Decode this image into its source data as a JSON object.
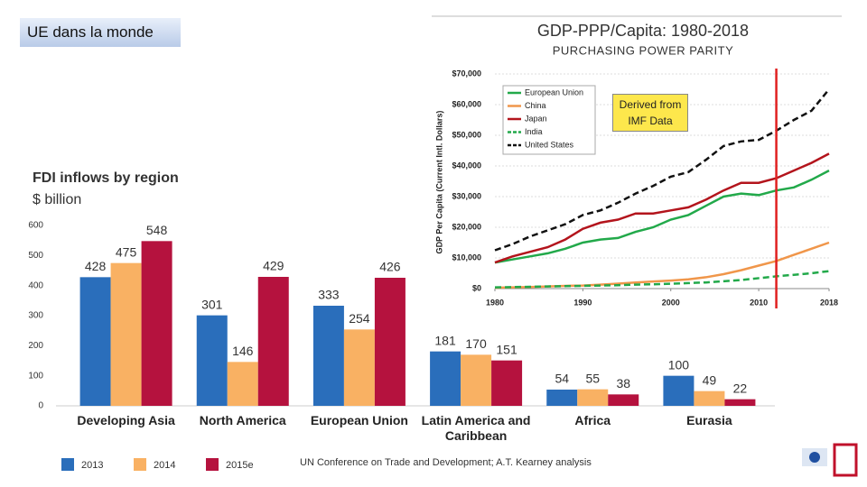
{
  "slide_title": "UE dans la monde",
  "chart_data": [
    {
      "type": "bar",
      "title": "FDI inflows by region",
      "subtitle": "$ billion",
      "categories": [
        "Developing Asia",
        "North America",
        "European Union",
        "Latin America and Caribbean",
        "Africa",
        "Eurasia"
      ],
      "series": [
        {
          "name": "2013",
          "color": "#2a6ebb",
          "values": [
            428,
            301,
            333,
            181,
            54,
            100
          ]
        },
        {
          "name": "2014",
          "color": "#f9b163",
          "values": [
            475,
            146,
            254,
            170,
            55,
            49
          ]
        },
        {
          "name": "2015e",
          "color": "#b5123e",
          "values": [
            548,
            429,
            426,
            151,
            38,
            22
          ]
        }
      ],
      "ylim": [
        0,
        600
      ],
      "yticks": [
        0,
        100,
        200,
        300,
        400,
        500,
        600
      ],
      "source": "UN Conference on Trade and Development; A.T. Kearney analysis"
    },
    {
      "type": "line",
      "title": "GDP-PPP/Capita: 1980-2018",
      "subtitle": "PURCHASING POWER PARITY",
      "y_label": "GDP Per Capita (Current Intl. Dollars)",
      "annotation": "Derived from IMF Data",
      "x": [
        1980,
        1982,
        1984,
        1986,
        1988,
        1990,
        1992,
        1994,
        1996,
        1998,
        2000,
        2002,
        2004,
        2006,
        2008,
        2010,
        2012,
        2014,
        2016,
        2018
      ],
      "series": [
        {
          "name": "European Union",
          "color": "#22a94a",
          "dash": false,
          "values": [
            8500,
            9500,
            10500,
            11500,
            13000,
            15000,
            16000,
            16500,
            18500,
            20000,
            22500,
            24000,
            27000,
            30000,
            31000,
            30500,
            32000,
            33000,
            35500,
            38500
          ]
        },
        {
          "name": "China",
          "color": "#f0964a",
          "dash": false,
          "values": [
            300,
            400,
            500,
            700,
            900,
            1000,
            1300,
            1600,
            2000,
            2300,
            2600,
            3000,
            3700,
            4700,
            6000,
            7500,
            9000,
            11000,
            13000,
            15000
          ]
        },
        {
          "name": "Japan",
          "color": "#b3141c",
          "dash": false,
          "values": [
            8500,
            10500,
            12000,
            13500,
            16000,
            19500,
            21500,
            22500,
            24500,
            24500,
            25500,
            26500,
            29000,
            32000,
            34500,
            34500,
            36000,
            38500,
            41000,
            44000
          ]
        },
        {
          "name": "India",
          "color": "#22a94a",
          "dash": true,
          "values": [
            400,
            500,
            600,
            700,
            800,
            900,
            1000,
            1100,
            1300,
            1400,
            1600,
            1800,
            2000,
            2400,
            2800,
            3400,
            4000,
            4500,
            5000,
            5700
          ]
        },
        {
          "name": "United States",
          "color": "#111111",
          "dash": true,
          "values": [
            12500,
            14500,
            17000,
            19000,
            21000,
            24000,
            25500,
            28000,
            31000,
            33500,
            36500,
            38000,
            42000,
            46500,
            48000,
            48500,
            51500,
            55000,
            58000,
            65000
          ]
        }
      ],
      "vline_x": 2012,
      "vline_color": "#e02020",
      "xlim": [
        1980,
        2018
      ],
      "xticks": [
        1980,
        1990,
        2000,
        2010,
        2018
      ],
      "ylim": [
        0,
        70000
      ],
      "yticks": [
        {
          "value": 0,
          "label": "$0"
        },
        {
          "value": 10000,
          "label": "$10,000"
        },
        {
          "value": 20000,
          "label": "$20,000"
        },
        {
          "value": 30000,
          "label": "$30,000"
        },
        {
          "value": 40000,
          "label": "$40,000"
        },
        {
          "value": 50000,
          "label": "$50,000"
        },
        {
          "value": 60000,
          "label": "$60,000"
        },
        {
          "value": 70000,
          "label": "$70,000"
        }
      ],
      "grid": true
    }
  ]
}
